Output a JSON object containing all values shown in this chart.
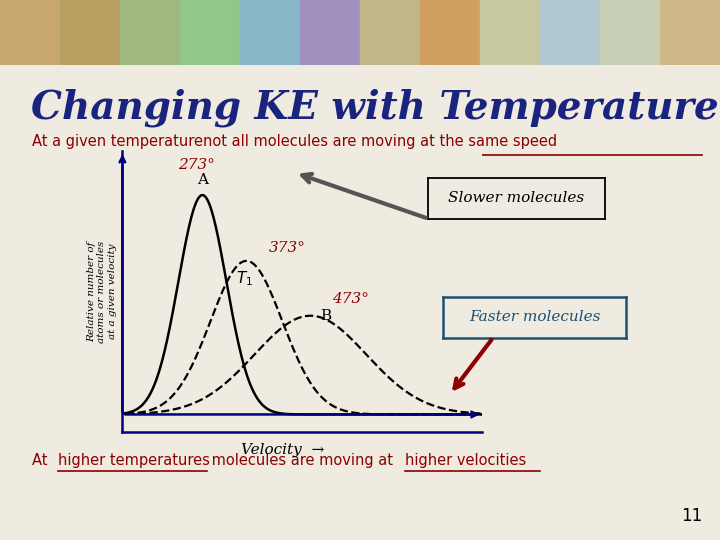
{
  "title": "Changing KE with Temperature",
  "title_color": "#1a237e",
  "title_fontsize": 28,
  "subtitle_plain": "At a given temperature ",
  "subtitle_underlined": "not all molecules are moving at the same speed",
  "subtitle_color": "#8b0000",
  "bottom_color": "#8b0000",
  "background_color": "#f0ebe0",
  "slide_number": "11",
  "curve_273_label": "273°",
  "curve_273_mean": 2.5,
  "curve_273_std": 0.6,
  "curve_273_amp": 1.0,
  "curve_373_label": "373°",
  "curve_373_mean": 3.6,
  "curve_373_std": 0.9,
  "curve_373_amp": 0.7,
  "curve_473_label": "473°",
  "curve_473_mean": 5.2,
  "curve_473_std": 1.4,
  "curve_473_amp": 0.45,
  "label_color": "#8b0000",
  "box_slower": "Slower molecules",
  "box_faster": "Faster molecules",
  "ylabel": "Relative number of\natoms or molecules\nat a given velocity",
  "arrow_slower_color": "#555555",
  "arrow_faster_color": "#8b0000",
  "box_faster_border": "#1a5276",
  "box_faster_text": "#1a5276"
}
